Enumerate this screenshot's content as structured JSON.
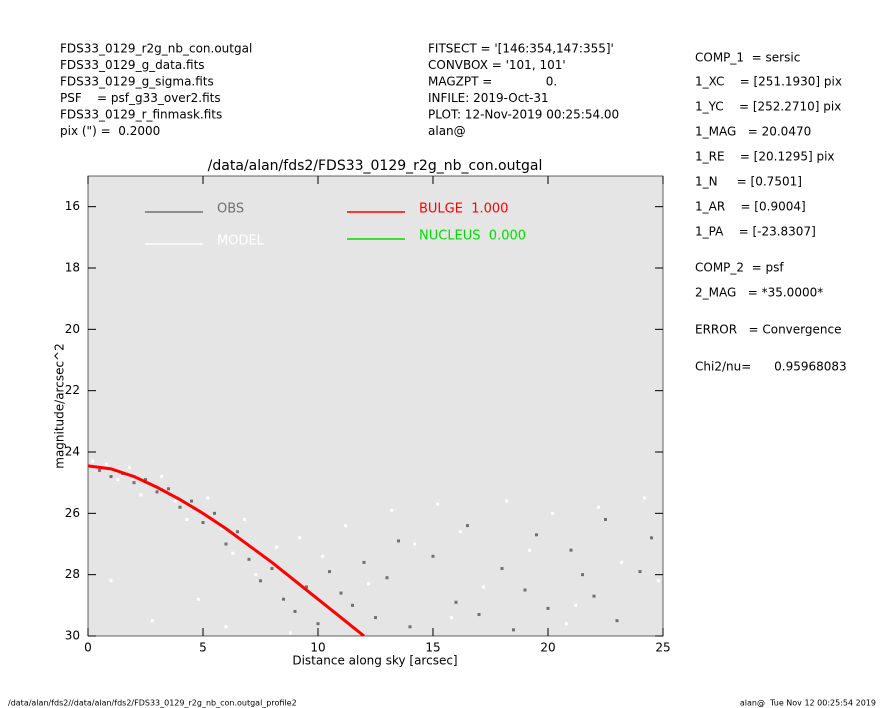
{
  "header": {
    "left": [
      "FDS33_0129_r2g_nb_con.outgal",
      "FDS33_0129_g_data.fits",
      "FDS33_0129_g_sigma.fits",
      "PSF    = psf_g33_over2.fits",
      "FDS33_0129_r_finmask.fits",
      "pix (\") =  0.2000"
    ],
    "middle": [
      "FITSECT = '[146:354,147:355]'",
      "CONVBOX = '101, 101'",
      "MAGZPT =              0.",
      "INFILE: 2019-Oct-31",
      "PLOT: 12-Nov-2019 00:25:54.00",
      "alan@"
    ]
  },
  "components": [
    "COMP_1  = sersic",
    "1_XC    = [251.1930] pix",
    "1_YC    = [252.2710] pix",
    "1_MAG   = 20.0470",
    "1_RE    = [20.1295] pix",
    "1_N     = [0.7501]",
    "1_AR    = [0.9004]",
    "1_PA    = [-23.8307]",
    "COMP_2  = psf",
    "2_MAG   = *35.0000*",
    "ERROR   = Convergence",
    "Chi2/nu=      0.95968083"
  ],
  "footer": {
    "left": "/data/alan/fds2//data/alan/fds2/FDS33_0129_r2g_nb_con.outgal_profile2",
    "right": "alan@  Tue Nov 12 00:25:54 2019"
  },
  "chart_data": {
    "type": "scatter",
    "title": "/data/alan/fds2/FDS33_0129_r2g_nb_con.outgal",
    "xlabel": "Distance along sky [arcsec]",
    "ylabel": "magnitude/arcsec^2",
    "xlim": [
      0,
      25
    ],
    "ylim": [
      30,
      15
    ],
    "xticks": [
      0,
      5,
      10,
      15,
      20,
      25
    ],
    "yticks": [
      16,
      18,
      20,
      22,
      24,
      26,
      28,
      30
    ],
    "background": "#e5e5e5",
    "series": [
      {
        "name": "OBS",
        "color": "#707070",
        "mode": "points",
        "x": [
          0.5,
          1,
          1.5,
          2,
          2.5,
          3,
          3.5,
          4,
          4.5,
          5,
          5.5,
          6,
          6.5,
          7,
          7.5,
          8,
          8.5,
          9,
          9.5,
          10,
          10.5,
          11,
          11.5,
          12,
          12.5,
          13,
          14,
          15,
          16,
          17,
          18,
          19,
          20,
          21,
          22,
          23,
          24,
          24.5,
          13.5,
          16.5,
          19.5,
          22.5,
          18.5,
          21.5
        ],
        "values": [
          24.6,
          24.8,
          24.7,
          25.0,
          24.9,
          25.3,
          25.2,
          25.8,
          25.6,
          26.3,
          26.0,
          27.0,
          26.6,
          27.5,
          28.2,
          27.8,
          28.8,
          29.2,
          28.4,
          29.6,
          27.9,
          28.6,
          29.0,
          27.6,
          29.4,
          28.1,
          29.7,
          27.4,
          28.9,
          29.3,
          27.8,
          28.5,
          29.1,
          27.2,
          28.7,
          29.5,
          27.9,
          26.8,
          26.9,
          26.4,
          26.7,
          26.2,
          29.8,
          28.0
        ]
      },
      {
        "name": "MODEL",
        "color": "#ffffff",
        "mode": "points",
        "x": [
          0.2,
          0.8,
          1.3,
          1.8,
          2.3,
          3.2,
          3.8,
          4.3,
          5.2,
          5.8,
          6.3,
          6.8,
          7.3,
          8.2,
          9.2,
          10.2,
          11.2,
          12.2,
          13.2,
          14.2,
          15.2,
          16.2,
          17.2,
          18.2,
          19.2,
          20.2,
          21.2,
          22.2,
          23.2,
          24.2,
          24.8,
          2.8,
          4.8,
          6.0,
          1.0,
          8.8,
          15.8,
          20.8
        ],
        "values": [
          24.3,
          24.4,
          24.9,
          24.5,
          25.4,
          24.8,
          25.6,
          26.2,
          25.5,
          26.5,
          27.3,
          26.2,
          28.0,
          27.1,
          26.8,
          27.4,
          26.4,
          28.3,
          25.9,
          27.0,
          25.7,
          26.6,
          28.4,
          25.6,
          27.2,
          26.0,
          29.0,
          25.8,
          27.6,
          25.5,
          28.2,
          29.5,
          28.8,
          29.7,
          28.2,
          29.9,
          29.4,
          29.6
        ]
      },
      {
        "name": "BULGE  1.000",
        "color": "#ff0000",
        "mode": "line",
        "x": [
          0,
          1,
          2,
          3,
          4,
          5,
          6,
          7,
          8,
          9,
          10,
          11,
          12
        ],
        "values": [
          24.45,
          24.55,
          24.8,
          25.15,
          25.55,
          26.0,
          26.5,
          27.05,
          27.6,
          28.2,
          28.8,
          29.4,
          30.0
        ]
      },
      {
        "name": "NUCLEUS  0.000",
        "color": "#00dd00",
        "mode": "line",
        "x": [],
        "values": []
      }
    ]
  }
}
